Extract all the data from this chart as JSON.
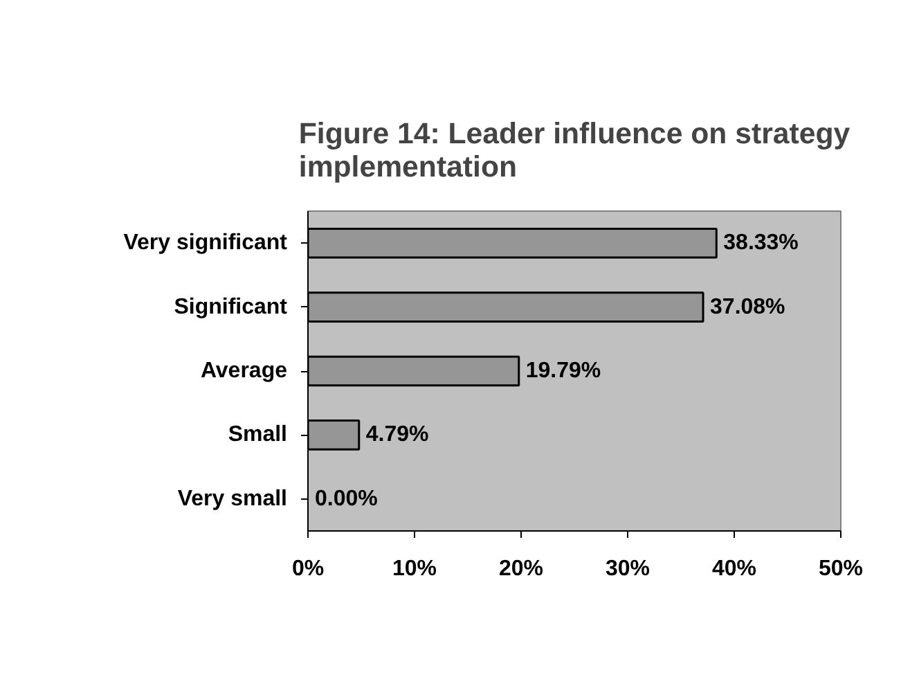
{
  "chart_data": {
    "type": "bar",
    "orientation": "horizontal",
    "title": "Figure 14: Leader influence on strategy implementation",
    "categories": [
      "Very significant",
      "Significant",
      "Average",
      "Small",
      "Very small"
    ],
    "values": [
      38.33,
      37.08,
      19.79,
      4.79,
      0.0
    ],
    "value_labels": [
      "38.33%",
      "37.08%",
      "19.79%",
      "4.79%",
      "0.00%"
    ],
    "color": "#969696",
    "xlim": [
      0,
      50
    ],
    "xticks": [
      {
        "value": 0,
        "label": "0%"
      },
      {
        "value": 10,
        "label": "10%"
      },
      {
        "value": 20,
        "label": "20%"
      },
      {
        "value": 30,
        "label": "30%"
      },
      {
        "value": 40,
        "label": "40%"
      },
      {
        "value": 50,
        "label": "50%"
      }
    ],
    "grid": false
  }
}
